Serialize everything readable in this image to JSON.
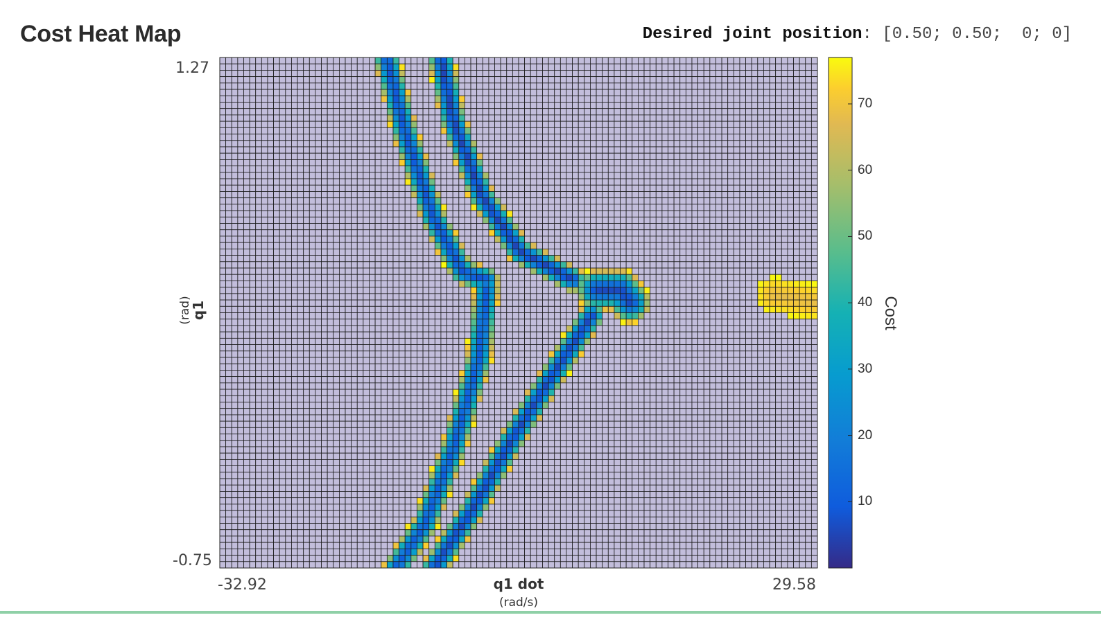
{
  "page": {
    "title": "Cost Heat Map",
    "desired_label": "Desired joint position",
    "desired_value": ": [0.50; 0.50;  0; 0]"
  },
  "chart_data": {
    "type": "heatmap",
    "title": "Cost Heat Map",
    "xlabel": "q1 dot",
    "xunit": "(rad/s)",
    "ylabel": "q1",
    "yunit": "(rad)",
    "xlim": [
      -32.92,
      29.58
    ],
    "ylim": [
      -0.75,
      1.27
    ],
    "x_tick_labels": [
      "-32.92",
      "29.58"
    ],
    "y_tick_labels": [
      "1.27",
      "-0.75"
    ],
    "grid_cells": {
      "cols": 100,
      "rows": 80
    },
    "background_color": "#c2bddb",
    "colorbar": {
      "label": "Cost",
      "min": 0,
      "max": 77,
      "ticks": [
        10,
        20,
        30,
        40,
        50,
        60,
        70
      ],
      "colormap": "parula"
    },
    "regions": [
      {
        "name": "left-upper-band-outer",
        "points": [
          [
            -15.5,
            1.27
          ],
          [
            -13.5,
            0.97
          ],
          [
            -10.5,
            0.63
          ],
          [
            -7.5,
            0.42
          ],
          [
            -5.0,
            0.39
          ]
        ],
        "core_cost": 8
      },
      {
        "name": "left-upper-band-inner",
        "points": [
          [
            -9.8,
            1.27
          ],
          [
            -8.5,
            1.02
          ],
          [
            -5.5,
            0.72
          ],
          [
            -1.5,
            0.5
          ],
          [
            4.0,
            0.39
          ]
        ],
        "core_cost": 5
      },
      {
        "name": "left-lower-band-outer",
        "points": [
          [
            -5.0,
            0.36
          ],
          [
            -5.8,
            0.08
          ],
          [
            -8.5,
            -0.28
          ],
          [
            -11.5,
            -0.58
          ],
          [
            -14.5,
            -0.75
          ]
        ],
        "core_cost": 10
      },
      {
        "name": "left-lower-band-inner",
        "points": [
          [
            6.0,
            0.25
          ],
          [
            2.0,
            0.02
          ],
          [
            -2.5,
            -0.25
          ],
          [
            -6.5,
            -0.52
          ],
          [
            -10.5,
            -0.75
          ]
        ],
        "core_cost": 6
      },
      {
        "name": "right-tip",
        "points": [
          [
            6.5,
            0.35
          ],
          [
            9.0,
            0.35
          ],
          [
            10.0,
            0.3
          ]
        ],
        "core_cost": 6
      },
      {
        "name": "far-right-patch",
        "points": [
          [
            25.0,
            0.33
          ],
          [
            29.58,
            0.3
          ]
        ],
        "core_cost": 68
      }
    ]
  }
}
